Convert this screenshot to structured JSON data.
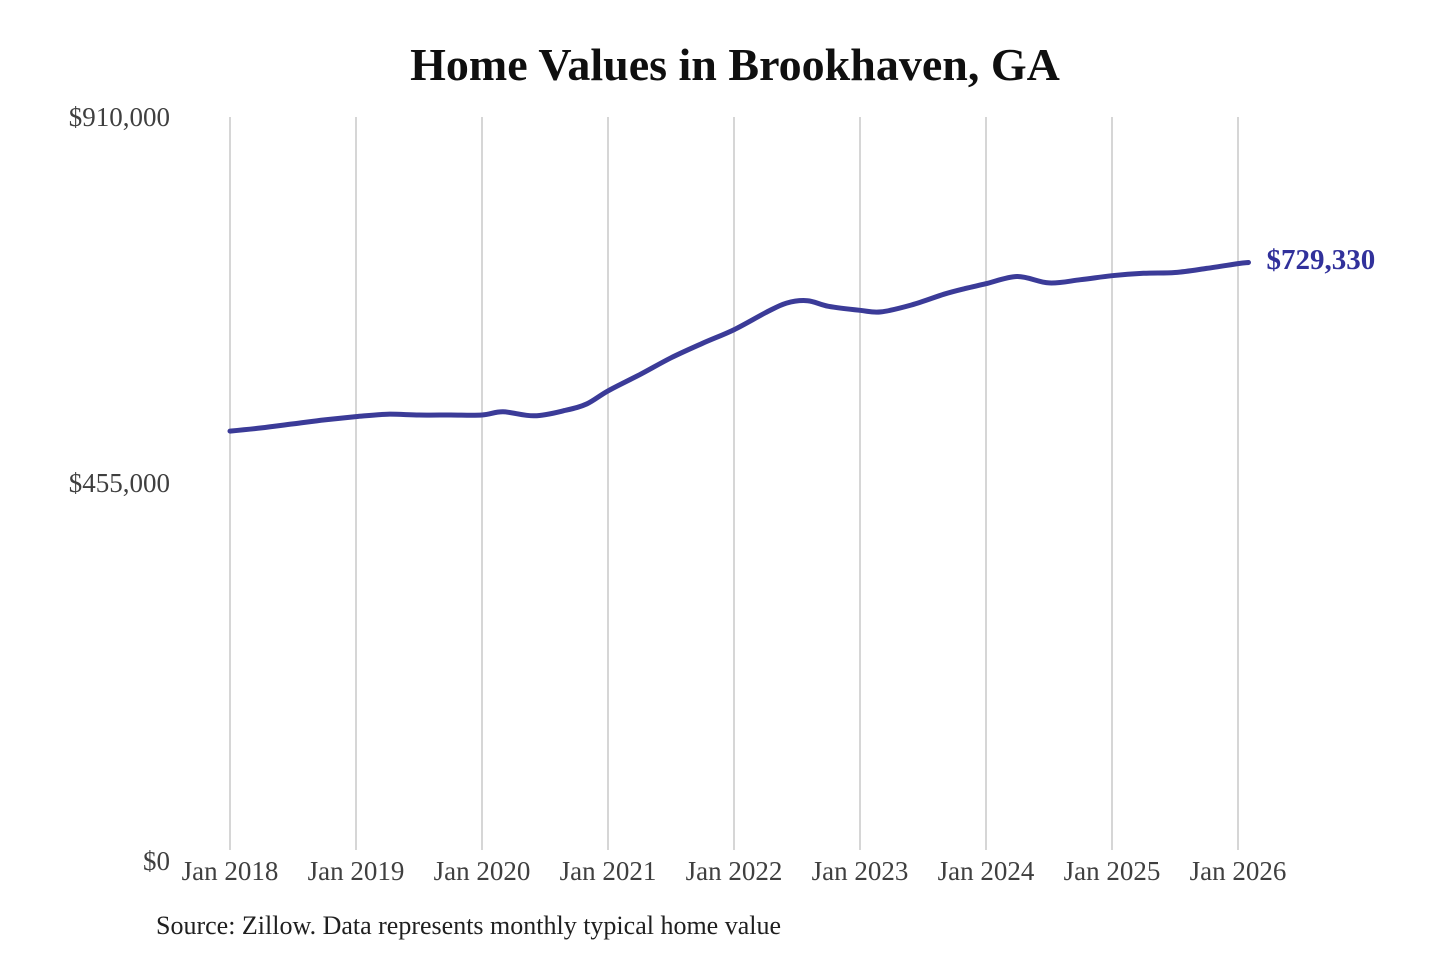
{
  "source_note": "Source: Zillow. Data represents monthly typical home value",
  "colors": {
    "background": "#ffffff",
    "line": "#3b3b98",
    "callout_text": "#31319b",
    "gridline": "#c9c9c9",
    "axis_text": "#3f3f3f",
    "title_text": "#0f0f0f",
    "source_text": "#1f1f1f"
  },
  "chart_data": {
    "type": "line",
    "title": "Home Values in Brookhaven, GA",
    "xlabel": "",
    "ylabel": "",
    "ylim": [
      0,
      910000
    ],
    "y_ticks": [
      0,
      455000,
      910000
    ],
    "y_tick_labels": [
      "$0",
      "$455,000",
      "$910,000"
    ],
    "x_tick_labels": [
      "Jan 2018",
      "Jan 2019",
      "Jan 2020",
      "Jan 2021",
      "Jan 2022",
      "Jan 2023",
      "Jan 2024",
      "Jan 2025",
      "Jan 2026"
    ],
    "grid": "vertical-only",
    "legend": "none",
    "final_value_label": "$729,330",
    "series": [
      {
        "name": "Typical home value (monthly)",
        "points": [
          [
            "2018-01",
            520000
          ],
          [
            "2018-04",
            524000
          ],
          [
            "2018-07",
            529000
          ],
          [
            "2018-10",
            534000
          ],
          [
            "2019-01",
            538000
          ],
          [
            "2019-04",
            541000
          ],
          [
            "2019-07",
            540000
          ],
          [
            "2019-10",
            540000
          ],
          [
            "2020-01",
            540000
          ],
          [
            "2020-03",
            544000
          ],
          [
            "2020-06",
            539000
          ],
          [
            "2020-09",
            546000
          ],
          [
            "2020-11",
            554000
          ],
          [
            "2021-01",
            570000
          ],
          [
            "2021-04",
            590000
          ],
          [
            "2021-07",
            611000
          ],
          [
            "2021-10",
            629000
          ],
          [
            "2022-01",
            646000
          ],
          [
            "2022-04",
            667000
          ],
          [
            "2022-06",
            679000
          ],
          [
            "2022-08",
            682000
          ],
          [
            "2022-10",
            675000
          ],
          [
            "2023-01",
            670000
          ],
          [
            "2023-03",
            668000
          ],
          [
            "2023-06",
            677000
          ],
          [
            "2023-09",
            690000
          ],
          [
            "2023-11",
            697000
          ],
          [
            "2024-01",
            703000
          ],
          [
            "2024-04",
            712000
          ],
          [
            "2024-07",
            704000
          ],
          [
            "2024-10",
            708000
          ],
          [
            "2025-01",
            713000
          ],
          [
            "2025-04",
            716000
          ],
          [
            "2025-07",
            717000
          ],
          [
            "2025-10",
            722000
          ],
          [
            "2026-01",
            728000
          ],
          [
            "2026-02",
            729330
          ]
        ]
      }
    ]
  }
}
